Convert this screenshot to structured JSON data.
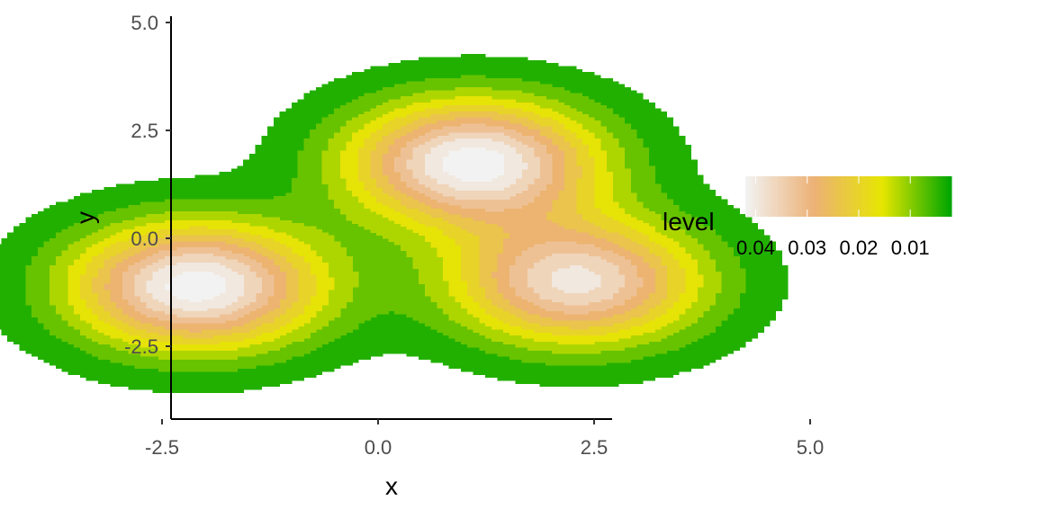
{
  "chart_data": {
    "type": "filled-density-contour",
    "xlabel": "x",
    "ylabel": "y",
    "xlim": [
      -4.5,
      5.1
    ],
    "ylim": [
      -4.2,
      5.1
    ],
    "x_ticks": [
      -2.5,
      0.0,
      2.5,
      5.0
    ],
    "x_tick_labels": [
      "-2.5",
      "0.0",
      "2.5",
      "5.0"
    ],
    "y_ticks": [
      -2.5,
      0.0,
      2.5,
      5.0
    ],
    "y_tick_labels": [
      "-2.5",
      "0.0",
      "2.5",
      "5.0"
    ],
    "grid": false,
    "components": [
      {
        "cx": -2.1,
        "cy": -1.1,
        "amp": 0.0445,
        "sx": 1.0,
        "sy": 1.0
      },
      {
        "cx": 1.1,
        "cy": 1.75,
        "amp": 0.0445,
        "sx": 1.0,
        "sy": 1.0
      },
      {
        "cx": 2.3,
        "cy": -1.0,
        "amp": 0.039,
        "sx": 1.0,
        "sy": 1.0
      }
    ],
    "levels": [
      0.002,
      0.006,
      0.01,
      0.014,
      0.018,
      0.022,
      0.026,
      0.03,
      0.034,
      0.038,
      0.042
    ],
    "legend": {
      "title": "level",
      "position": "right",
      "orientation": "horizontal",
      "reversed": true,
      "range": [
        0.002,
        0.042
      ],
      "breaks": [
        0.04,
        0.03,
        0.02,
        0.01
      ],
      "break_labels": [
        "0.04",
        "0.03",
        "0.02",
        "0.01"
      ],
      "colors_high_to_low": [
        "#f2f2f2",
        "#ecb176",
        "#e6e600",
        "#00a600"
      ]
    }
  }
}
